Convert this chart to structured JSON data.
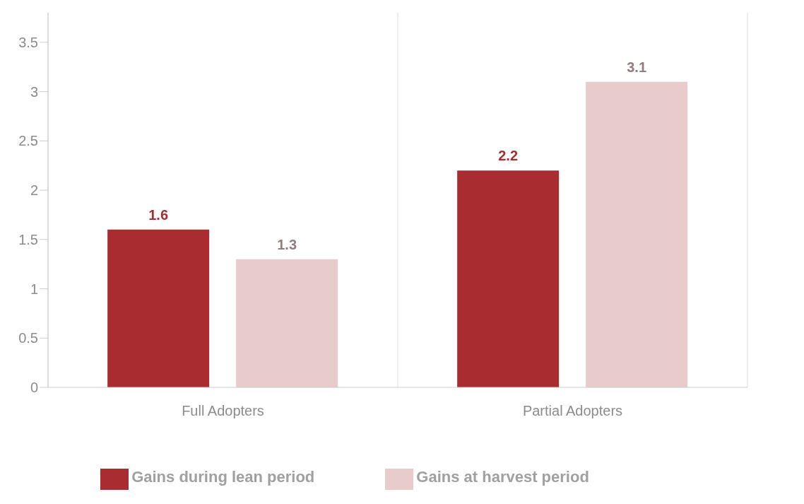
{
  "chart_data": {
    "type": "bar",
    "categories": [
      "Full Adopters",
      "Partial Adopters"
    ],
    "series": [
      {
        "name": "Gains during lean period",
        "color": "#a82c30",
        "values": [
          1.6,
          2.2
        ]
      },
      {
        "name": "Gains at harvest period",
        "color": "#e8cccc",
        "values": [
          1.3,
          3.1
        ]
      }
    ],
    "ylim": [
      0,
      3.8
    ],
    "yticks": [
      0,
      0.5,
      1,
      1.5,
      2,
      2.5,
      3,
      3.5
    ],
    "grid": "x",
    "legend": "bottom",
    "data_labels": true
  }
}
